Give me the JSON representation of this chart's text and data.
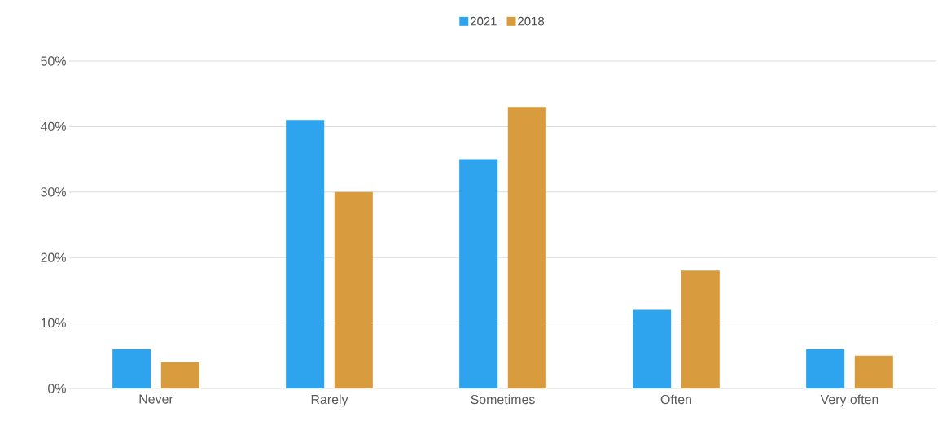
{
  "chart_data": {
    "type": "bar",
    "categories": [
      "Never",
      "Rarely",
      "Sometimes",
      "Often",
      "Very often"
    ],
    "series": [
      {
        "name": "2021",
        "color": "#2ea3ee",
        "values": [
          6,
          41,
          35,
          12,
          6
        ]
      },
      {
        "name": "2018",
        "color": "#d89c3f",
        "values": [
          4,
          30,
          43,
          18,
          5
        ]
      }
    ],
    "ylim": [
      0,
      50
    ],
    "yticks": [
      {
        "value": 0,
        "label": "0%"
      },
      {
        "value": 10,
        "label": "10%"
      },
      {
        "value": 20,
        "label": "20%"
      },
      {
        "value": 30,
        "label": "30%"
      },
      {
        "value": 40,
        "label": "40%"
      },
      {
        "value": 50,
        "label": "50%"
      }
    ],
    "grid": "y",
    "legend": "top"
  }
}
